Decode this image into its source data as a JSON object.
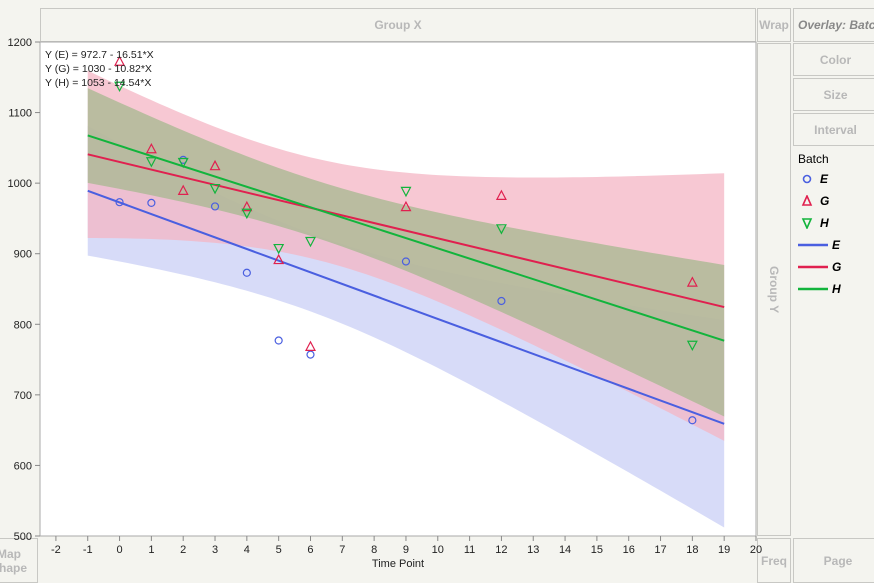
{
  "zones": {
    "group_x": "Group X",
    "wrap": "Wrap",
    "overlay": "Overlay: Batch",
    "color": "Color",
    "size": "Size",
    "interval": "Interval",
    "group_y": "Group Y",
    "freq": "Freq",
    "page": "Page",
    "map_shape": "Map Shape"
  },
  "chart_data": {
    "type": "scatter",
    "xlabel": "Time Point",
    "ylabel": "",
    "xlim": [
      -2.5,
      20
    ],
    "ylim": [
      500,
      1200
    ],
    "xticks": [
      -2,
      -1,
      0,
      1,
      2,
      3,
      4,
      5,
      6,
      7,
      8,
      9,
      10,
      11,
      12,
      13,
      14,
      15,
      16,
      17,
      18,
      19,
      20
    ],
    "yticks": [
      500,
      600,
      700,
      800,
      900,
      1000,
      1100,
      1200
    ],
    "legend_title": "Batch",
    "legend_position": "right",
    "equations": [
      "Y (E) = 972.7 - 16.51*X",
      "Y (G) = 1030 - 10.82*X",
      "Y (H) = 1053 - 14.54*X"
    ],
    "series": [
      {
        "name": "E",
        "color": "#4a5fe0",
        "band": "#c9cff5",
        "marker": "circle",
        "intercept": 972.7,
        "slope": -16.51,
        "x": [
          0,
          1,
          2,
          3,
          4,
          5,
          6,
          9,
          12,
          18
        ],
        "y": [
          973,
          972,
          1033,
          967,
          873,
          777,
          757,
          889,
          833,
          664
        ]
      },
      {
        "name": "G",
        "color": "#e0204f",
        "band": "#f4b6c4",
        "marker": "triangle-up",
        "intercept": 1030,
        "slope": -10.82,
        "x": [
          0,
          1,
          2,
          3,
          4,
          5,
          6,
          9,
          12,
          18
        ],
        "y": [
          1172,
          1048,
          989,
          1024,
          966,
          891,
          768,
          966,
          982,
          859
        ]
      },
      {
        "name": "H",
        "color": "#12b43c",
        "band": "#a5b88f",
        "marker": "triangle-down",
        "intercept": 1053,
        "slope": -14.54,
        "x": [
          0,
          1,
          2,
          3,
          4,
          5,
          6,
          9,
          12,
          18
        ],
        "y": [
          1138,
          1031,
          1030,
          993,
          958,
          908,
          918,
          989,
          936,
          771
        ]
      }
    ],
    "fit_range": [
      -1,
      19
    ]
  }
}
